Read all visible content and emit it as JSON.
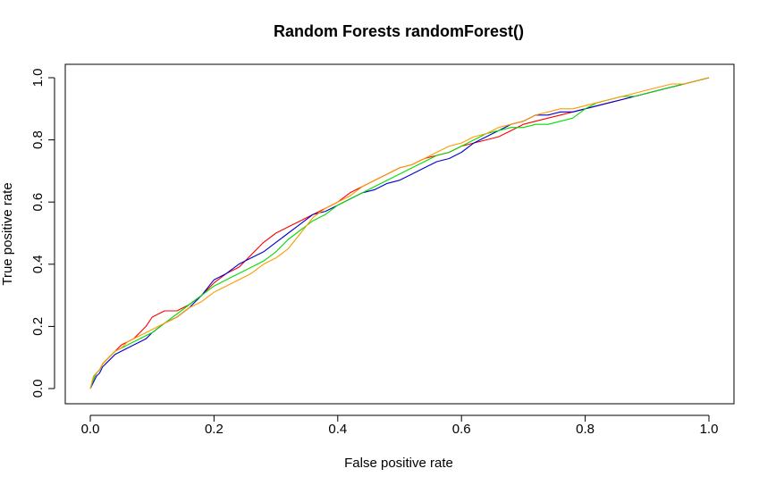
{
  "chart_data": {
    "type": "line",
    "title": "Random Forests randomForest()",
    "xlabel": "False positive rate",
    "ylabel": "True positive rate",
    "xlim": [
      0,
      1
    ],
    "ylim": [
      0,
      1
    ],
    "xticks": [
      "0.0",
      "0.2",
      "0.4",
      "0.6",
      "0.8",
      "1.0"
    ],
    "yticks": [
      "0.0",
      "0.2",
      "0.4",
      "0.6",
      "0.8",
      "1.0"
    ],
    "grid": false,
    "legend": "none",
    "series": [
      {
        "color": "#ff0000",
        "x": [
          0,
          0.005,
          0.01,
          0.015,
          0.02,
          0.03,
          0.04,
          0.05,
          0.06,
          0.07,
          0.08,
          0.09,
          0.1,
          0.11,
          0.12,
          0.14,
          0.16,
          0.18,
          0.2,
          0.22,
          0.24,
          0.26,
          0.28,
          0.3,
          0.32,
          0.34,
          0.36,
          0.38,
          0.4,
          0.42,
          0.44,
          0.46,
          0.48,
          0.5,
          0.52,
          0.54,
          0.56,
          0.58,
          0.6,
          0.62,
          0.64,
          0.66,
          0.68,
          0.7,
          0.72,
          0.74,
          0.76,
          0.78,
          0.8,
          0.82,
          0.84,
          0.86,
          0.88,
          0.9,
          0.92,
          0.94,
          0.96,
          0.98,
          1.0
        ],
        "y": [
          0,
          0.03,
          0.05,
          0.06,
          0.08,
          0.1,
          0.12,
          0.14,
          0.15,
          0.16,
          0.18,
          0.2,
          0.23,
          0.24,
          0.25,
          0.25,
          0.27,
          0.3,
          0.34,
          0.37,
          0.39,
          0.43,
          0.47,
          0.5,
          0.52,
          0.54,
          0.56,
          0.58,
          0.6,
          0.63,
          0.65,
          0.67,
          0.69,
          0.71,
          0.72,
          0.74,
          0.75,
          0.76,
          0.78,
          0.79,
          0.8,
          0.81,
          0.83,
          0.85,
          0.86,
          0.87,
          0.88,
          0.89,
          0.9,
          0.91,
          0.92,
          0.93,
          0.94,
          0.95,
          0.96,
          0.97,
          0.98,
          0.99,
          1.0
        ]
      },
      {
        "color": "#0000cc",
        "x": [
          0,
          0.005,
          0.01,
          0.015,
          0.02,
          0.03,
          0.04,
          0.05,
          0.06,
          0.07,
          0.08,
          0.09,
          0.1,
          0.12,
          0.14,
          0.16,
          0.18,
          0.2,
          0.22,
          0.24,
          0.26,
          0.28,
          0.3,
          0.32,
          0.34,
          0.36,
          0.38,
          0.4,
          0.42,
          0.44,
          0.46,
          0.48,
          0.5,
          0.52,
          0.54,
          0.56,
          0.58,
          0.6,
          0.62,
          0.64,
          0.66,
          0.68,
          0.7,
          0.72,
          0.74,
          0.76,
          0.78,
          0.8,
          0.82,
          0.84,
          0.86,
          0.88,
          0.9,
          0.92,
          0.94,
          0.96,
          0.98,
          1.0
        ],
        "y": [
          0,
          0.02,
          0.04,
          0.05,
          0.07,
          0.09,
          0.11,
          0.12,
          0.13,
          0.14,
          0.15,
          0.16,
          0.18,
          0.21,
          0.23,
          0.26,
          0.3,
          0.35,
          0.37,
          0.4,
          0.42,
          0.44,
          0.47,
          0.5,
          0.53,
          0.56,
          0.57,
          0.59,
          0.61,
          0.63,
          0.64,
          0.66,
          0.67,
          0.69,
          0.71,
          0.73,
          0.74,
          0.76,
          0.79,
          0.81,
          0.83,
          0.85,
          0.86,
          0.88,
          0.88,
          0.89,
          0.89,
          0.9,
          0.91,
          0.92,
          0.93,
          0.94,
          0.95,
          0.96,
          0.97,
          0.98,
          0.99,
          1.0
        ]
      },
      {
        "color": "#00dd00",
        "x": [
          0,
          0.005,
          0.01,
          0.015,
          0.02,
          0.03,
          0.04,
          0.05,
          0.06,
          0.07,
          0.08,
          0.09,
          0.1,
          0.12,
          0.14,
          0.16,
          0.18,
          0.2,
          0.22,
          0.24,
          0.26,
          0.28,
          0.3,
          0.32,
          0.34,
          0.36,
          0.38,
          0.4,
          0.42,
          0.44,
          0.46,
          0.48,
          0.5,
          0.52,
          0.54,
          0.56,
          0.58,
          0.6,
          0.62,
          0.64,
          0.66,
          0.68,
          0.7,
          0.72,
          0.74,
          0.76,
          0.78,
          0.8,
          0.82,
          0.84,
          0.86,
          0.88,
          0.9,
          0.92,
          0.94,
          0.96,
          0.98,
          1.0
        ],
        "y": [
          0,
          0.03,
          0.05,
          0.06,
          0.08,
          0.1,
          0.12,
          0.13,
          0.14,
          0.15,
          0.16,
          0.17,
          0.18,
          0.21,
          0.24,
          0.27,
          0.3,
          0.33,
          0.35,
          0.37,
          0.39,
          0.41,
          0.44,
          0.48,
          0.51,
          0.54,
          0.56,
          0.59,
          0.61,
          0.63,
          0.65,
          0.67,
          0.69,
          0.71,
          0.73,
          0.75,
          0.76,
          0.78,
          0.8,
          0.82,
          0.83,
          0.84,
          0.84,
          0.85,
          0.85,
          0.86,
          0.87,
          0.9,
          0.92,
          0.93,
          0.94,
          0.94,
          0.95,
          0.96,
          0.97,
          0.98,
          0.99,
          1.0
        ]
      },
      {
        "color": "#ff9900",
        "x": [
          0,
          0.005,
          0.01,
          0.015,
          0.02,
          0.03,
          0.04,
          0.05,
          0.06,
          0.07,
          0.08,
          0.09,
          0.1,
          0.12,
          0.14,
          0.16,
          0.18,
          0.2,
          0.22,
          0.24,
          0.26,
          0.28,
          0.3,
          0.32,
          0.34,
          0.36,
          0.38,
          0.4,
          0.42,
          0.44,
          0.46,
          0.48,
          0.5,
          0.52,
          0.54,
          0.56,
          0.58,
          0.6,
          0.62,
          0.64,
          0.66,
          0.68,
          0.7,
          0.72,
          0.74,
          0.76,
          0.78,
          0.8,
          0.82,
          0.84,
          0.86,
          0.88,
          0.9,
          0.92,
          0.94,
          0.96,
          0.98,
          1.0
        ],
        "y": [
          0,
          0.04,
          0.05,
          0.06,
          0.08,
          0.1,
          0.12,
          0.13,
          0.15,
          0.16,
          0.17,
          0.18,
          0.19,
          0.21,
          0.23,
          0.26,
          0.28,
          0.31,
          0.33,
          0.35,
          0.37,
          0.4,
          0.42,
          0.45,
          0.5,
          0.55,
          0.58,
          0.6,
          0.62,
          0.65,
          0.67,
          0.69,
          0.71,
          0.72,
          0.74,
          0.76,
          0.78,
          0.79,
          0.81,
          0.82,
          0.84,
          0.85,
          0.86,
          0.88,
          0.89,
          0.9,
          0.9,
          0.91,
          0.92,
          0.93,
          0.94,
          0.95,
          0.96,
          0.97,
          0.98,
          0.98,
          0.99,
          1.0
        ]
      }
    ]
  }
}
